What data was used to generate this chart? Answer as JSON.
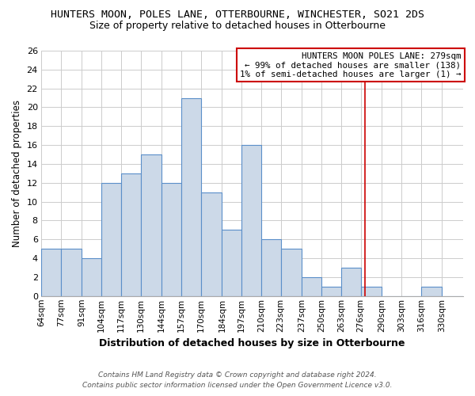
{
  "title": "HUNTERS MOON, POLES LANE, OTTERBOURNE, WINCHESTER, SO21 2DS",
  "subtitle": "Size of property relative to detached houses in Otterbourne",
  "xlabel": "Distribution of detached houses by size in Otterbourne",
  "ylabel": "Number of detached properties",
  "bin_labels": [
    "64sqm",
    "77sqm",
    "91sqm",
    "104sqm",
    "117sqm",
    "130sqm",
    "144sqm",
    "157sqm",
    "170sqm",
    "184sqm",
    "197sqm",
    "210sqm",
    "223sqm",
    "237sqm",
    "250sqm",
    "263sqm",
    "276sqm",
    "290sqm",
    "303sqm",
    "316sqm",
    "330sqm"
  ],
  "bin_edges": [
    64,
    77,
    91,
    104,
    117,
    130,
    144,
    157,
    170,
    184,
    197,
    210,
    223,
    237,
    250,
    263,
    276,
    290,
    303,
    316,
    330,
    344
  ],
  "bar_heights": [
    5,
    5,
    4,
    12,
    13,
    15,
    12,
    21,
    11,
    7,
    16,
    6,
    5,
    2,
    1,
    3,
    1,
    0,
    0,
    1,
    0
  ],
  "bar_color": "#ccd9e8",
  "bar_edge_color": "#5b8fc9",
  "bar_edge_width": 0.8,
  "vline_x": 279,
  "vline_color": "#cc0000",
  "ylim": [
    0,
    26
  ],
  "yticks": [
    0,
    2,
    4,
    6,
    8,
    10,
    12,
    14,
    16,
    18,
    20,
    22,
    24,
    26
  ],
  "annotation_title": "HUNTERS MOON POLES LANE: 279sqm",
  "annotation_line1": "← 99% of detached houses are smaller (138)",
  "annotation_line2": "1% of semi-detached houses are larger (1) →",
  "annotation_box_color": "#cc0000",
  "footnote1": "Contains HM Land Registry data © Crown copyright and database right 2024.",
  "footnote2": "Contains public sector information licensed under the Open Government Licence v3.0.",
  "background_color": "#ffffff",
  "grid_color": "#cccccc",
  "title_fontsize": 9.5,
  "subtitle_fontsize": 9,
  "ylabel_fontsize": 8.5,
  "xlabel_fontsize": 9,
  "ytick_fontsize": 8,
  "xtick_fontsize": 7.5,
  "footnote_fontsize": 6.5
}
